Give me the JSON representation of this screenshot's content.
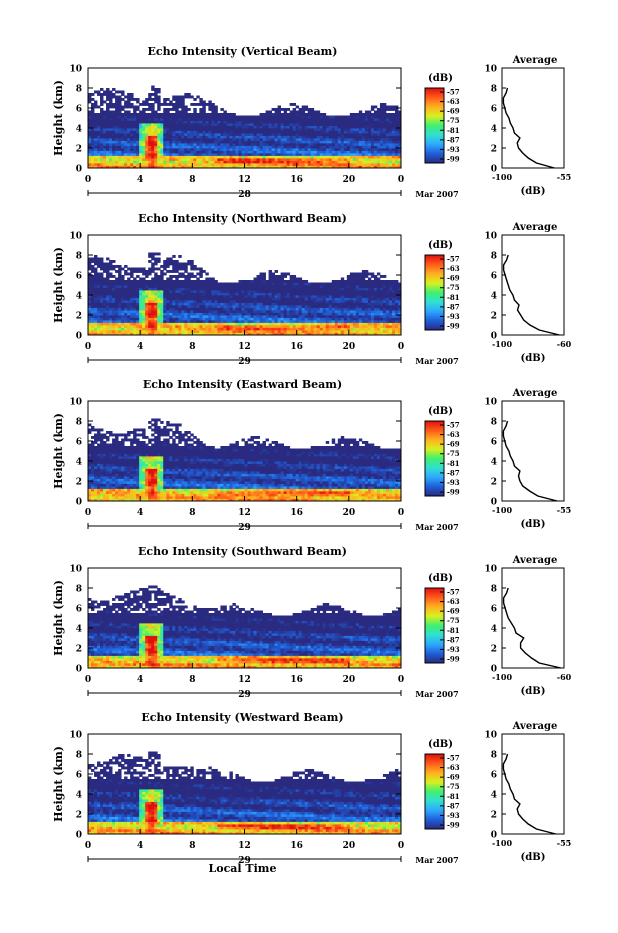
{
  "figure": {
    "xlabel": "Local Time",
    "date_label": "Mar 2007",
    "x_ticks": [
      "0",
      "4",
      "8",
      "12",
      "16",
      "20",
      "0"
    ],
    "y_ticks": [
      "0",
      "2",
      "4",
      "6",
      "8",
      "10"
    ],
    "ylabel": "Height (km)",
    "colorbar_unit": "(dB)",
    "average_title": "Average",
    "average_xlabel": "(dB)"
  },
  "chart_data": [
    {
      "type": "heatmap",
      "title": "Echo Intensity (Vertical Beam)",
      "day_label": "28",
      "xlim": [
        0,
        24
      ],
      "ylim": [
        0,
        10
      ],
      "colorbar": {
        "ticks": [
          "-57",
          "-63",
          "-69",
          "-75",
          "-81",
          "-87",
          "-93",
          "-99"
        ],
        "range": [
          -99,
          -57
        ],
        "colors": [
          "#2a2a80",
          "#1f5fd8",
          "#2fa8ff",
          "#30e0d0",
          "#40f070",
          "#d8f020",
          "#ffb020",
          "#ff5a1a",
          "#e01010"
        ]
      },
      "average_profile": {
        "type": "line",
        "xlim": [
          -100,
          -55
        ],
        "x_ticks": [
          "-100",
          "-55"
        ],
        "y_ticks": [
          "0",
          "2",
          "4",
          "6",
          "8",
          "10"
        ],
        "height": [
          0.0,
          0.5,
          1.0,
          1.5,
          2.0,
          2.5,
          3.0,
          3.5,
          4.0,
          4.5,
          5.0,
          5.5,
          6.0,
          6.5,
          7.0,
          7.5,
          8.0
        ],
        "value": [
          -62,
          -75,
          -81,
          -85,
          -88,
          -89,
          -87,
          -91,
          -92,
          -94,
          -95,
          -97,
          -98,
          -99,
          -99,
          -97,
          -96
        ]
      }
    },
    {
      "type": "heatmap",
      "title": "Echo Intensity (Northward Beam)",
      "day_label": "29",
      "xlim": [
        0,
        24
      ],
      "ylim": [
        0,
        10
      ],
      "colorbar": {
        "ticks": [
          "-57",
          "-63",
          "-69",
          "-75",
          "-81",
          "-87",
          "-93",
          "-99"
        ],
        "range": [
          -99,
          -57
        ],
        "colors": [
          "#2a2a80",
          "#1f5fd8",
          "#2fa8ff",
          "#30e0d0",
          "#40f070",
          "#d8f020",
          "#ffb020",
          "#ff5a1a",
          "#e01010"
        ]
      },
      "average_profile": {
        "type": "line",
        "xlim": [
          -100,
          -60
        ],
        "x_ticks": [
          "-100",
          "-60"
        ],
        "y_ticks": [
          "0",
          "2",
          "4",
          "6",
          "8",
          "10"
        ],
        "height": [
          0.0,
          0.5,
          1.0,
          1.5,
          2.0,
          2.5,
          3.0,
          3.5,
          4.0,
          4.5,
          5.0,
          5.5,
          6.0,
          6.5,
          7.0,
          7.5,
          8.0
        ],
        "value": [
          -63,
          -76,
          -82,
          -86,
          -88,
          -90,
          -89,
          -92,
          -93,
          -95,
          -96,
          -97,
          -98,
          -99,
          -99,
          -97,
          -96
        ]
      }
    },
    {
      "type": "heatmap",
      "title": "Echo Intensity (Eastward Beam)",
      "day_label": "29",
      "xlim": [
        0,
        24
      ],
      "ylim": [
        0,
        10
      ],
      "colorbar": {
        "ticks": [
          "-57",
          "-63",
          "-69",
          "-75",
          "-81",
          "-87",
          "-93",
          "-99"
        ],
        "range": [
          -99,
          -57
        ],
        "colors": [
          "#2a2a80",
          "#1f5fd8",
          "#2fa8ff",
          "#30e0d0",
          "#40f070",
          "#d8f020",
          "#ffb020",
          "#ff5a1a",
          "#e01010"
        ]
      },
      "average_profile": {
        "type": "line",
        "xlim": [
          -100,
          -55
        ],
        "x_ticks": [
          "-100",
          "-55"
        ],
        "y_ticks": [
          "0",
          "2",
          "4",
          "6",
          "8",
          "10"
        ],
        "height": [
          0.0,
          0.5,
          1.0,
          1.5,
          2.0,
          2.5,
          3.0,
          3.5,
          4.0,
          4.5,
          5.0,
          5.5,
          6.0,
          6.5,
          7.0,
          7.5,
          8.0
        ],
        "value": [
          -60,
          -74,
          -80,
          -85,
          -87,
          -88,
          -87,
          -91,
          -92,
          -94,
          -95,
          -97,
          -98,
          -99,
          -99,
          -97,
          -96
        ]
      }
    },
    {
      "type": "heatmap",
      "title": "Echo Intensity (Southward Beam)",
      "day_label": "29",
      "xlim": [
        0,
        24
      ],
      "ylim": [
        0,
        10
      ],
      "colorbar": {
        "ticks": [
          "-57",
          "-63",
          "-69",
          "-75",
          "-81",
          "-87",
          "-93",
          "-99"
        ],
        "range": [
          -99,
          -57
        ],
        "colors": [
          "#2a2a80",
          "#1f5fd8",
          "#2fa8ff",
          "#30e0d0",
          "#40f070",
          "#d8f020",
          "#ffb020",
          "#ff5a1a",
          "#e01010"
        ]
      },
      "average_profile": {
        "type": "line",
        "xlim": [
          -100,
          -60
        ],
        "x_ticks": [
          "-100",
          "-60"
        ],
        "y_ticks": [
          "0",
          "2",
          "4",
          "6",
          "8",
          "10"
        ],
        "height": [
          0.0,
          0.5,
          1.0,
          1.5,
          2.0,
          2.5,
          3.0,
          3.5,
          4.0,
          4.5,
          5.0,
          5.5,
          6.0,
          6.5,
          7.0,
          7.5,
          8.0
        ],
        "value": [
          -62,
          -76,
          -81,
          -85,
          -88,
          -88,
          -86,
          -91,
          -92,
          -94,
          -96,
          -97,
          -98,
          -99,
          -99,
          -97,
          -96
        ]
      }
    },
    {
      "type": "heatmap",
      "title": "Echo Intensity (Westward Beam)",
      "day_label": "29",
      "xlim": [
        0,
        24
      ],
      "ylim": [
        0,
        10
      ],
      "colorbar": {
        "ticks": [
          "-57",
          "-63",
          "-69",
          "-75",
          "-81",
          "-87",
          "-93",
          "-99"
        ],
        "range": [
          -99,
          -57
        ],
        "colors": [
          "#2a2a80",
          "#1f5fd8",
          "#2fa8ff",
          "#30e0d0",
          "#40f070",
          "#d8f020",
          "#ffb020",
          "#ff5a1a",
          "#e01010"
        ]
      },
      "average_profile": {
        "type": "line",
        "xlim": [
          -100,
          -55
        ],
        "x_ticks": [
          "-100",
          "-55"
        ],
        "y_ticks": [
          "0",
          "2",
          "4",
          "6",
          "8",
          "10"
        ],
        "height": [
          0.0,
          0.5,
          1.0,
          1.5,
          2.0,
          2.5,
          3.0,
          3.5,
          4.0,
          4.5,
          5.0,
          5.5,
          6.0,
          6.5,
          7.0,
          7.5,
          8.0
        ],
        "value": [
          -61,
          -75,
          -81,
          -85,
          -88,
          -89,
          -87,
          -91,
          -92,
          -94,
          -95,
          -97,
          -98,
          -99,
          -99,
          -97,
          -96
        ]
      }
    }
  ]
}
